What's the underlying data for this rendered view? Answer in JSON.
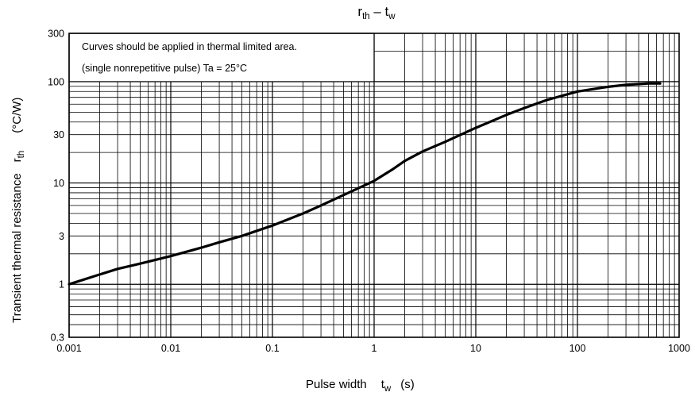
{
  "chart_data": {
    "type": "line",
    "title": {
      "main": "r",
      "main_sub": "th",
      "dash": " – t",
      "dash_sub": "w"
    },
    "xlabel": {
      "text": "Pulse width",
      "symbol": "t",
      "symbol_sub": "w",
      "unit": "(s)"
    },
    "ylabel": {
      "text": "Transient thermal resistance",
      "symbol": "r",
      "symbol_sub": "th",
      "unit": "(°C/W)"
    },
    "x_scale": "log",
    "y_scale": "log",
    "xlim": [
      0.001,
      1000
    ],
    "ylim": [
      0.3,
      300
    ],
    "x_ticks": [
      {
        "value": 0.001,
        "label": "0.001"
      },
      {
        "value": 0.01,
        "label": "0.01"
      },
      {
        "value": 0.1,
        "label": "0.1"
      },
      {
        "value": 1,
        "label": "1"
      },
      {
        "value": 10,
        "label": "10"
      },
      {
        "value": 100,
        "label": "100"
      },
      {
        "value": 1000,
        "label": "1000"
      }
    ],
    "y_ticks": [
      {
        "value": 0.3,
        "label": "0.3"
      },
      {
        "value": 1,
        "label": "1"
      },
      {
        "value": 3,
        "label": "3"
      },
      {
        "value": 10,
        "label": "10"
      },
      {
        "value": 30,
        "label": "30"
      },
      {
        "value": 100,
        "label": "100"
      },
      {
        "value": 300,
        "label": "300"
      }
    ],
    "grid": true,
    "annotations": [
      "Curves should be applied in thermal limited area.",
      "(single nonrepetitive pulse)    Ta = 25°C"
    ],
    "series": [
      {
        "x": [
          0.001,
          0.002,
          0.003,
          0.005,
          0.01,
          0.02,
          0.03,
          0.05,
          0.1,
          0.2,
          0.3,
          0.5,
          1,
          1.5,
          2,
          3,
          5,
          10,
          20,
          30,
          50,
          100,
          200,
          300,
          500,
          650
        ],
        "y": [
          1.0,
          1.25,
          1.42,
          1.6,
          1.9,
          2.3,
          2.6,
          3.0,
          3.8,
          5.0,
          6.0,
          7.6,
          10.5,
          13.5,
          16.5,
          20.5,
          25.5,
          35,
          47,
          55,
          66,
          80,
          89,
          93,
          96,
          96
        ]
      }
    ]
  }
}
